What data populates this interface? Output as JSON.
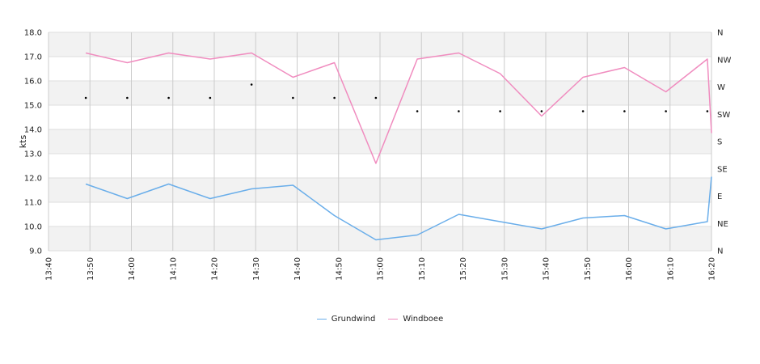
{
  "chart_data": {
    "type": "line",
    "ylabel": "kts",
    "ylim": [
      9.0,
      18.0
    ],
    "y_ticks": [
      "9.0",
      "10.0",
      "11.0",
      "12.0",
      "13.0",
      "14.0",
      "15.0",
      "16.0",
      "17.0",
      "18.0"
    ],
    "y2_ticks": [
      "N",
      "NE",
      "E",
      "SE",
      "S",
      "SW",
      "W",
      "NW",
      "N"
    ],
    "x_ticks": [
      "13:40",
      "13:50",
      "14:00",
      "14:10",
      "14:20",
      "14:30",
      "14:40",
      "14:50",
      "15:00",
      "15:10",
      "15:20",
      "15:30",
      "15:40",
      "15:50",
      "16:00",
      "16:10",
      "16:20"
    ],
    "grid": true,
    "series": [
      {
        "name": "Grundwind",
        "color": "#6aaeea",
        "x": [
          "13:49",
          "13:59",
          "14:09",
          "14:19",
          "14:29",
          "14:39",
          "14:49",
          "14:59",
          "15:09",
          "15:19",
          "15:29",
          "15:39",
          "15:49",
          "15:59",
          "16:09",
          "16:19",
          "16:20"
        ],
        "values": [
          11.75,
          11.15,
          11.75,
          11.15,
          11.55,
          11.7,
          10.45,
          9.45,
          9.65,
          10.5,
          10.2,
          9.9,
          10.35,
          10.45,
          9.9,
          10.2,
          12.05
        ]
      },
      {
        "name": "Windboee",
        "color": "#f08cbf",
        "x": [
          "13:49",
          "13:59",
          "14:09",
          "14:19",
          "14:29",
          "14:39",
          "14:49",
          "14:59",
          "15:09",
          "15:19",
          "15:29",
          "15:39",
          "15:49",
          "15:59",
          "16:09",
          "16:19",
          "16:20"
        ],
        "values": [
          17.15,
          16.75,
          17.15,
          16.9,
          17.15,
          16.15,
          16.75,
          12.6,
          16.9,
          17.15,
          16.3,
          14.55,
          16.15,
          16.55,
          15.55,
          16.9,
          13.85
        ]
      }
    ],
    "direction_markers": {
      "x": [
        "13:49",
        "13:59",
        "14:09",
        "14:19",
        "14:29",
        "14:39",
        "14:49",
        "14:59",
        "15:09",
        "15:19",
        "15:29",
        "15:39",
        "15:49",
        "15:59",
        "16:09",
        "16:19"
      ],
      "values": [
        15.3,
        15.3,
        15.3,
        15.3,
        15.85,
        15.3,
        15.3,
        15.3,
        14.75,
        14.75,
        14.75,
        14.75,
        14.75,
        14.75,
        14.75,
        14.75
      ]
    },
    "legend_position": "bottom"
  }
}
